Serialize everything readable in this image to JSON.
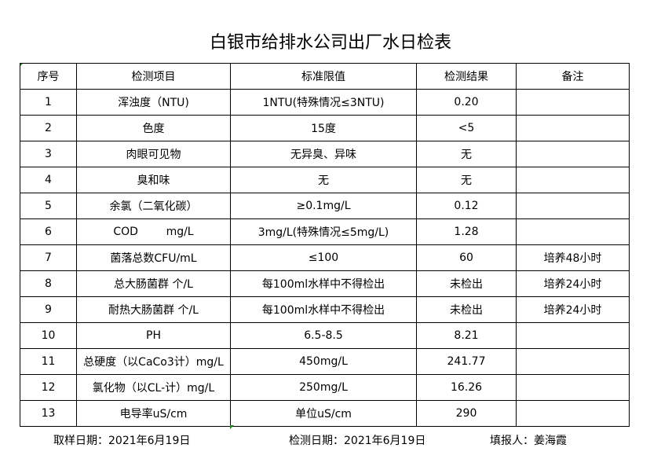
{
  "title": "白银市给排水公司出厂水日检表",
  "headers": [
    "序号",
    "检测项目",
    "标准限值",
    "检测结果",
    "备注"
  ],
  "rows": [
    [
      "1",
      "浑浊度（NTU)",
      "1NTU(特殊情况≤3NTU)",
      "0.20",
      ""
    ],
    [
      "2",
      "色度",
      "15度",
      "<5",
      ""
    ],
    [
      "3",
      "肉眼可见物",
      "无异臭、异味",
      "无",
      ""
    ],
    [
      "4",
      "臭和味",
      "无",
      "无",
      ""
    ],
    [
      "5",
      "余氯（二氧化碳）",
      "≥0.1mg/L",
      "0.12",
      ""
    ],
    [
      "6",
      "COD        mg/L",
      "3mg/L(特殊情况≤5mg/L)",
      "1.28",
      ""
    ],
    [
      "7",
      "菌落总数CFU/mL",
      "≤100",
      "60",
      "培养48小时"
    ],
    [
      "8",
      "总大肠菌群 个/L",
      "每100ml水样中不得检出",
      "未检出",
      "培养24小时"
    ],
    [
      "9",
      "耐热大肠菌群 个/L",
      "每100ml水样中不得检出",
      "未检出",
      "培养24小时"
    ],
    [
      "10",
      "PH",
      "6.5-8.5",
      "8.21",
      ""
    ],
    [
      "11",
      "总硬度（以CaCo3计）mg/L",
      "450mg/L",
      "241.77",
      ""
    ],
    [
      "12",
      "氯化物（以CL-计）mg/L",
      "250mg/L",
      "16.26",
      ""
    ],
    [
      "13",
      "电导率uS/cm",
      "单位uS/cm",
      "290",
      ""
    ]
  ],
  "footer": {
    "sampling_date": "取样日期：2021年6月19日",
    "test_date": "检测日期：2021年6月19日",
    "reporter": "填报人：姜海霞"
  }
}
